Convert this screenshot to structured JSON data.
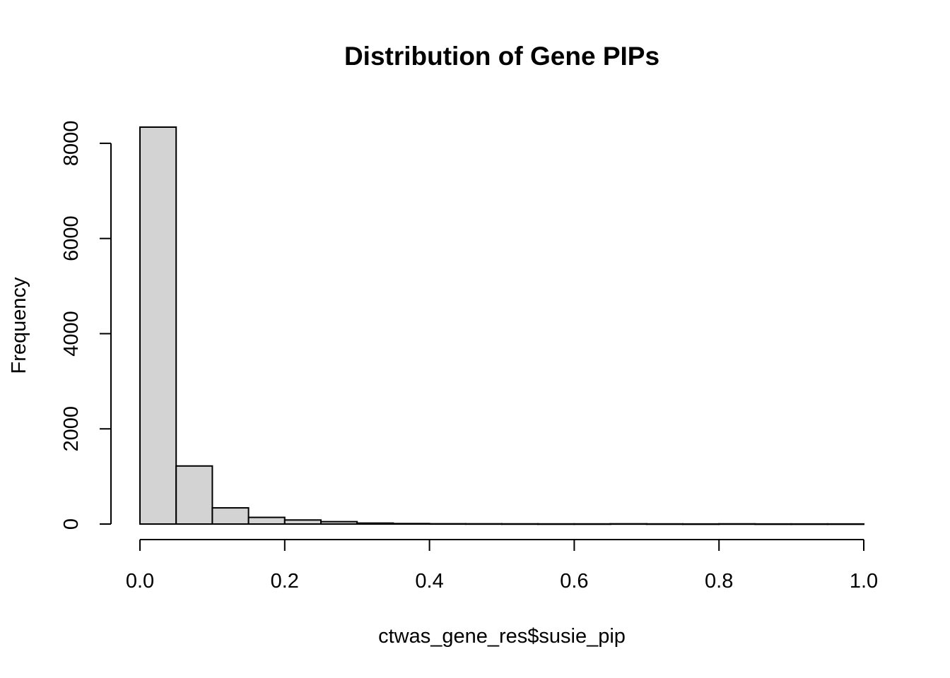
{
  "chart_data": {
    "type": "bar",
    "title": "Distribution of Gene PIPs",
    "xlabel": "ctwas_gene_res$susie_pip",
    "ylabel": "Frequency",
    "bin_width": 0.05,
    "bin_starts": [
      0.0,
      0.05,
      0.1,
      0.15,
      0.2,
      0.25,
      0.3,
      0.35,
      0.4,
      0.45,
      0.5,
      0.55,
      0.6,
      0.65,
      0.7,
      0.75,
      0.8,
      0.85,
      0.9,
      0.95
    ],
    "values": [
      8340,
      1220,
      340,
      140,
      85,
      50,
      20,
      10,
      6,
      5,
      4,
      3,
      3,
      5,
      3,
      2,
      4,
      2,
      2,
      2
    ],
    "xlim": [
      0,
      1
    ],
    "ylim": [
      0,
      8340
    ],
    "xticks": [
      "0.0",
      "0.2",
      "0.4",
      "0.6",
      "0.8",
      "1.0"
    ],
    "xtick_values": [
      0.0,
      0.2,
      0.4,
      0.6,
      0.8,
      1.0
    ],
    "yticks": [
      "0",
      "2000",
      "4000",
      "6000",
      "8000"
    ],
    "ytick_values": [
      0,
      2000,
      4000,
      6000,
      8000
    ],
    "bar_color": "#d3d3d3",
    "grid": false,
    "legend": "none"
  }
}
